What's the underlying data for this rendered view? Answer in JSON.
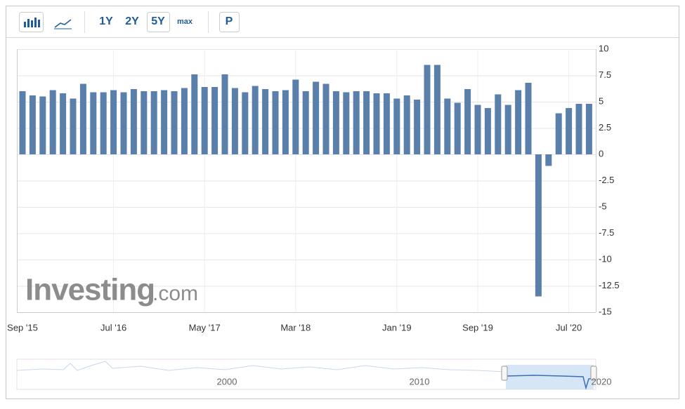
{
  "toolbar": {
    "buttons": [
      "1Y",
      "2Y",
      "5Y",
      "max",
      "P"
    ]
  },
  "watermark": {
    "brand": "Investing",
    "suffix": ".com"
  },
  "navigator": {
    "labels": [
      "2000",
      "2010",
      "2020"
    ]
  },
  "chart_data": {
    "type": "bar",
    "color": "#5a7fab",
    "grid": true,
    "categories": [
      "Sep '15",
      null,
      null,
      null,
      null,
      null,
      null,
      null,
      null,
      "Jul '16",
      null,
      null,
      null,
      null,
      null,
      null,
      null,
      null,
      "May '17",
      null,
      null,
      null,
      null,
      null,
      null,
      null,
      null,
      "Mar '18",
      null,
      null,
      null,
      null,
      null,
      null,
      null,
      null,
      null,
      "Jan '19",
      null,
      null,
      null,
      null,
      null,
      null,
      null,
      "Sep '19",
      null,
      null,
      null,
      null,
      null,
      null,
      null,
      null,
      "Jul '20",
      null,
      null
    ],
    "values": [
      6.0,
      5.6,
      5.5,
      6.1,
      5.8,
      5.3,
      6.7,
      5.9,
      5.9,
      6.1,
      5.9,
      6.2,
      6.0,
      6.0,
      6.1,
      6.0,
      6.3,
      7.6,
      6.4,
      6.4,
      7.6,
      6.3,
      5.9,
      6.5,
      6.2,
      6.0,
      6.1,
      7.1,
      6.0,
      6.9,
      6.7,
      6.0,
      5.9,
      6.0,
      6.0,
      5.8,
      5.8,
      5.3,
      5.6,
      5.2,
      8.5,
      8.5,
      5.3,
      4.9,
      6.2,
      4.7,
      4.4,
      5.7,
      4.7,
      6.1,
      6.8,
      -13.5,
      -1.1,
      3.9,
      4.4,
      4.8,
      4.8
    ],
    "ylim": [
      -15,
      10
    ],
    "yticks": [
      10,
      7.5,
      5,
      2.5,
      0,
      -2.5,
      -5,
      -7.5,
      -10,
      -12.5,
      -15
    ]
  }
}
